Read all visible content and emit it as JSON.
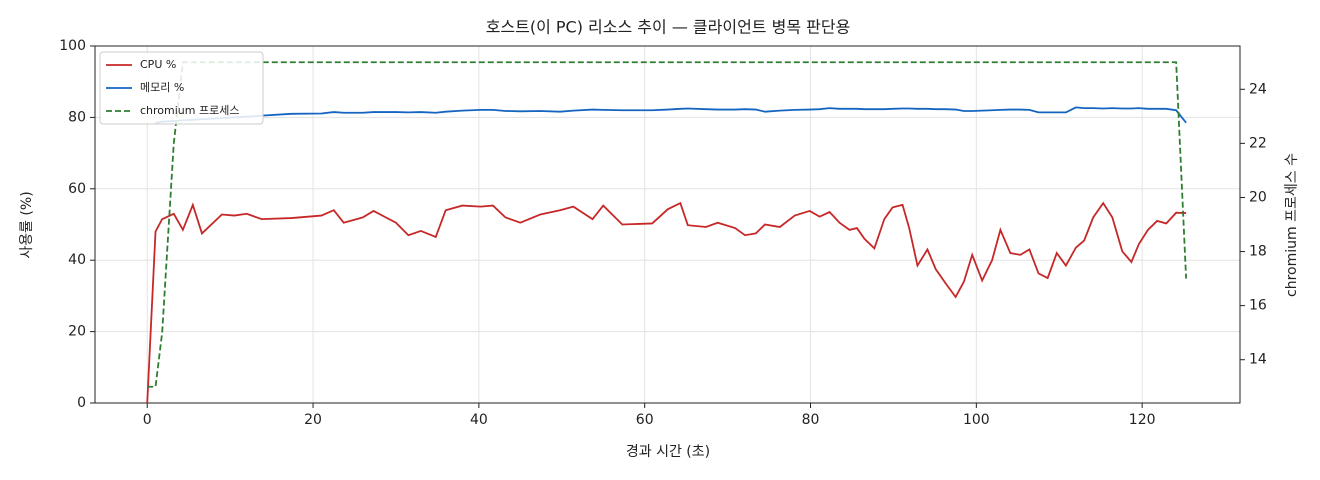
{
  "chart_data": {
    "type": "line",
    "title": "호스트(이 PC) 리소스 추이 — 클라이언트 병목 판단용",
    "x_label": "경과 시간 (초)",
    "y_label": "사용률 (%)",
    "y2_label": "chromium 프로세스 수",
    "x": [
      0,
      1,
      1.8,
      3.2,
      4.3,
      5.5,
      6.6,
      9,
      10.5,
      12,
      13.8,
      17.4,
      21,
      22.5,
      23.7,
      26,
      27.3,
      30,
      31.5,
      33,
      34.8,
      36,
      38,
      40.2,
      41.7,
      43.2,
      45,
      47.4,
      49.8,
      51.4,
      53.7,
      55,
      57.3,
      60.9,
      62.8,
      64.3,
      65.2,
      67.4,
      68.8,
      70.9,
      72.1,
      73.4,
      74.5,
      76.3,
      78.1,
      79.9,
      81.1,
      82.3,
      83.5,
      84.7,
      85.6,
      86.5,
      87.7,
      88.9,
      89.9,
      91.1,
      91.9,
      92.9,
      94.1,
      95.1,
      96.3,
      97.5,
      98.5,
      99.5,
      100.7,
      101.9,
      102.9,
      104.1,
      105.3,
      106.4,
      107.5,
      108.6,
      109.7,
      110.8,
      112,
      113,
      114.1,
      115.3,
      116.4,
      117.6,
      118.7,
      119.6,
      120.7,
      121.8,
      122.9,
      124.1,
      125.3
    ],
    "series": [
      {
        "name": "CPU %",
        "color": "#c62828",
        "linestyle": "solid",
        "axis": "y",
        "values": [
          0,
          48,
          51.5,
          53,
          48.5,
          55.5,
          47.5,
          52.8,
          52.5,
          53,
          51.5,
          51.8,
          52.5,
          54,
          50.5,
          52,
          53.8,
          50.5,
          47,
          48.2,
          46.5,
          54,
          55.3,
          55,
          55.3,
          52,
          50.5,
          52.8,
          54,
          55,
          51.5,
          55.3,
          50,
          50.3,
          54.3,
          56,
          49.8,
          49.3,
          50.5,
          49,
          47,
          47.5,
          50,
          49.3,
          52.5,
          53.8,
          52.2,
          53.5,
          50.5,
          48.5,
          49,
          46,
          43.3,
          51.5,
          54.8,
          55.5,
          49,
          38.5,
          43,
          37.5,
          33.5,
          29.7,
          34,
          41.5,
          34.3,
          40,
          48.5,
          42,
          41.5,
          43,
          36.3,
          35,
          42,
          38.5,
          43.5,
          45.5,
          52,
          56,
          52,
          42.5,
          39.5,
          44.5,
          48.5,
          51,
          50.3,
          53.3,
          53.2
        ]
      },
      {
        "name": "메모리 %",
        "color": "#1565c0",
        "linestyle": "solid",
        "axis": "y",
        "values": [
          null,
          78.5,
          78.8,
          79,
          79.2,
          79.3,
          79.5,
          79.8,
          80,
          80.2,
          80.5,
          81,
          81.1,
          81.5,
          81.3,
          81.3,
          81.5,
          81.5,
          81.4,
          81.5,
          81.3,
          81.6,
          81.9,
          82.1,
          82.1,
          81.8,
          81.7,
          81.8,
          81.6,
          81.9,
          82.2,
          82.1,
          82,
          82,
          82.2,
          82.4,
          82.5,
          82.3,
          82.2,
          82.2,
          82.3,
          82.2,
          81.6,
          81.9,
          82.1,
          82.2,
          82.3,
          82.6,
          82.4,
          82.4,
          82.4,
          82.3,
          82.3,
          82.3,
          82.4,
          82.5,
          82.5,
          82.4,
          82.4,
          82.3,
          82.3,
          82.2,
          81.8,
          81.8,
          81.9,
          82,
          82.1,
          82.2,
          82.2,
          82.1,
          81.4,
          81.4,
          81.4,
          81.4,
          82.8,
          82.6,
          82.6,
          82.5,
          82.6,
          82.5,
          82.5,
          82.6,
          82.4,
          82.4,
          82.4,
          82,
          78.5
        ]
      },
      {
        "name": "chromium 프로세스",
        "color": "#2e7d32",
        "linestyle": "dashed",
        "axis": "y2",
        "values": [
          13,
          13,
          15,
          22,
          25,
          25,
          25,
          25,
          25,
          25,
          25,
          25,
          25,
          25,
          25,
          25,
          25,
          25,
          25,
          25,
          25,
          25,
          25,
          25,
          25,
          25,
          25,
          25,
          25,
          25,
          25,
          25,
          25,
          25,
          25,
          25,
          25,
          25,
          25,
          25,
          25,
          25,
          25,
          25,
          25,
          25,
          25,
          25,
          25,
          25,
          25,
          25,
          25,
          25,
          25,
          25,
          25,
          25,
          25,
          25,
          25,
          25,
          25,
          25,
          25,
          25,
          25,
          25,
          25,
          25,
          25,
          25,
          25,
          25,
          25,
          25,
          25,
          25,
          25,
          25,
          25,
          25,
          25,
          25,
          25,
          25,
          17
        ]
      }
    ],
    "xlim": [
      -6.3,
      131.8
    ],
    "xticks": [
      0,
      20,
      40,
      60,
      80,
      100,
      120
    ],
    "ylim": [
      0,
      100
    ],
    "yticks": [
      0,
      20,
      40,
      60,
      80,
      100
    ],
    "y2lim": [
      12.4,
      25.6
    ],
    "y2ticks": [
      14,
      16,
      18,
      20,
      22,
      24
    ],
    "grid": true,
    "legend": "upper-left"
  }
}
